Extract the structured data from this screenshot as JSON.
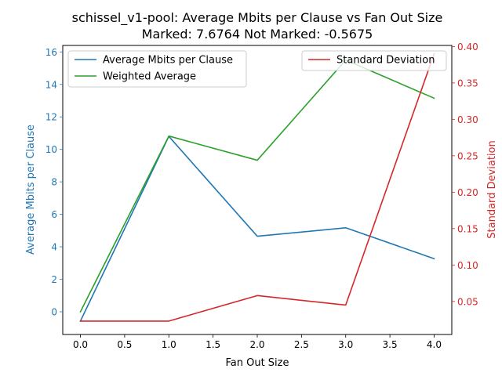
{
  "chart_data": {
    "type": "line",
    "title": "schissel_v1-pool: Average Mbits per Clause vs Fan Out Size",
    "subtitle": "Marked: 7.6764 Not Marked: -0.5675",
    "xlabel": "Fan Out Size",
    "ylabel_left": "Average Mbits per Clause",
    "ylabel_right": "Standard Deviation",
    "x": [
      0,
      1,
      2,
      3,
      4
    ],
    "xlim": [
      -0.2,
      4.2
    ],
    "ylim_left": [
      -1.4,
      16.4
    ],
    "ylim_right": [
      0.0046,
      0.4015
    ],
    "xticks": [
      "0.0",
      "0.5",
      "1.0",
      "1.5",
      "2.0",
      "2.5",
      "3.0",
      "3.5",
      "4.0"
    ],
    "yticks_left": [
      "0",
      "2",
      "4",
      "6",
      "8",
      "10",
      "12",
      "14",
      "16"
    ],
    "yticks_right": [
      "0.05",
      "0.10",
      "0.15",
      "0.20",
      "0.25",
      "0.30",
      "0.35",
      "0.40"
    ],
    "grid": false,
    "legend_left_position": "top-left",
    "legend_right_position": "top-right",
    "series_left": [
      {
        "name": "Average Mbits per Clause",
        "color": "#1f77b4",
        "values": [
          -0.57,
          10.8,
          4.65,
          5.17,
          3.27
        ]
      },
      {
        "name": "Weighted Average",
        "color": "#2ca02c",
        "values": [
          0.0,
          10.82,
          9.33,
          15.5,
          13.15
        ]
      }
    ],
    "series_right": [
      {
        "name": "Standard Deviation",
        "color": "#d62728",
        "values": [
          0.023,
          0.023,
          0.058,
          0.045,
          0.39
        ]
      }
    ],
    "left_axis_color": "#1f77b4",
    "right_axis_color": "#d62728"
  }
}
